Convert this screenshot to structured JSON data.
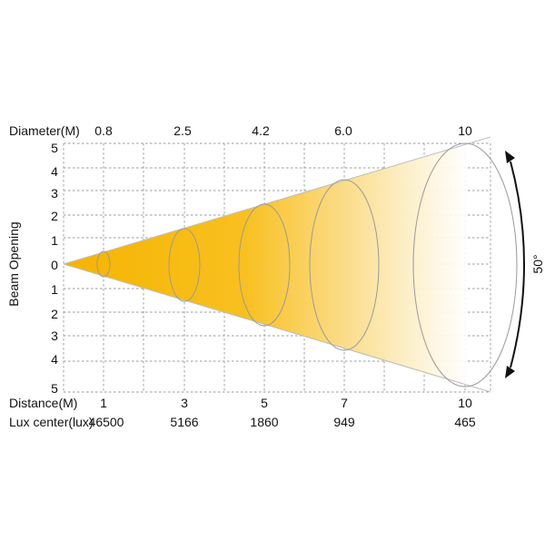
{
  "diameter_label": "Diameter(M)",
  "diameters": [
    "0.8",
    "2.5",
    "4.2",
    "6.0",
    "10"
  ],
  "beam_opening_label": "Beam Opening",
  "y_ticks": [
    "5",
    "4",
    "3",
    "2",
    "1",
    "0",
    "1",
    "2",
    "3",
    "4",
    "5"
  ],
  "distance_label": "Distance(M)",
  "distances": [
    "1",
    "3",
    "5",
    "7",
    "10"
  ],
  "lux_label": "Lux center(lux)",
  "lux_values": [
    "46500",
    "5166",
    "1860",
    "949",
    "465"
  ],
  "angle_label": "50°",
  "colors": {
    "beam_core": "#f5b400",
    "beam_edge": "#ffffff",
    "grid": "#9a9a9a"
  }
}
